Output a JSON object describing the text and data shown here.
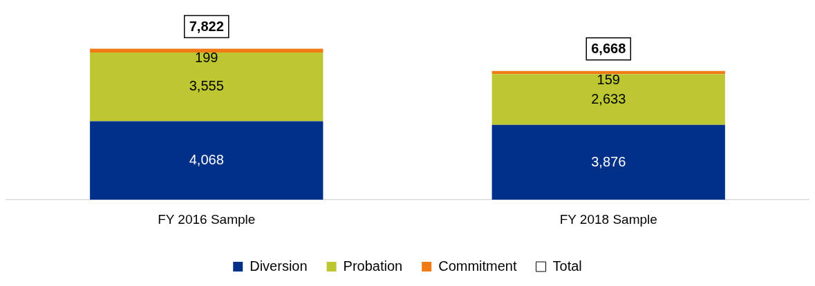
{
  "chart_data": {
    "type": "bar",
    "stacked": true,
    "categories": [
      "FY 2016 Sample",
      "FY 2018 Sample"
    ],
    "series": [
      {
        "name": "Diversion",
        "color": "#003087",
        "values": [
          4068,
          3876
        ],
        "value_labels": [
          "4,068",
          "3,876"
        ]
      },
      {
        "name": "Probation",
        "color": "#bcc731",
        "values": [
          3555,
          2633
        ],
        "value_labels": [
          "3,555",
          "2,633"
        ]
      },
      {
        "name": "Commitment",
        "color": "#f07b16",
        "values": [
          199,
          159
        ],
        "value_labels": [
          "199",
          "159"
        ]
      },
      {
        "name": "Total",
        "color": "#ffffff",
        "values": [
          null,
          null
        ]
      }
    ],
    "totals": [
      "7,822",
      "6,668"
    ],
    "legend": "bottom",
    "grid": false
  }
}
